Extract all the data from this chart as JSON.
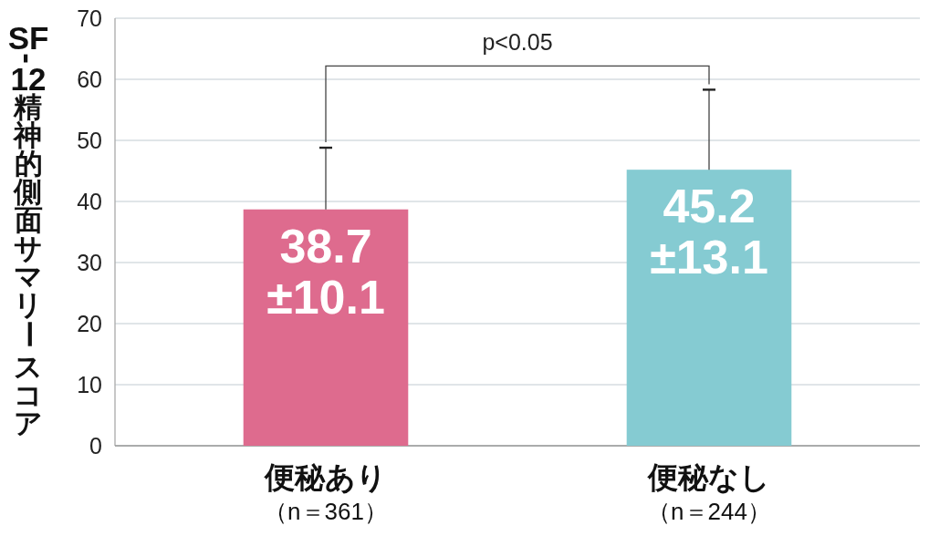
{
  "chart_data": {
    "type": "bar",
    "ylabel": "SF-12精神的側面サマリースコア",
    "categories": [
      "便秘あり（n＝361）",
      "便秘なし（n＝244）"
    ],
    "values": [
      38.7,
      45.2
    ],
    "colors": [
      "#de6b8e",
      "#85cbd2"
    ],
    "errors": [
      10.1,
      13.1
    ],
    "value_labels": [
      "38.7\n±10.1",
      "45.2\n±13.1"
    ],
    "ylim": [
      0,
      70
    ],
    "yticks": [
      0,
      10,
      20,
      30,
      40,
      50,
      60,
      70
    ],
    "grid": "y",
    "annotations": [
      "p<0.05"
    ]
  }
}
